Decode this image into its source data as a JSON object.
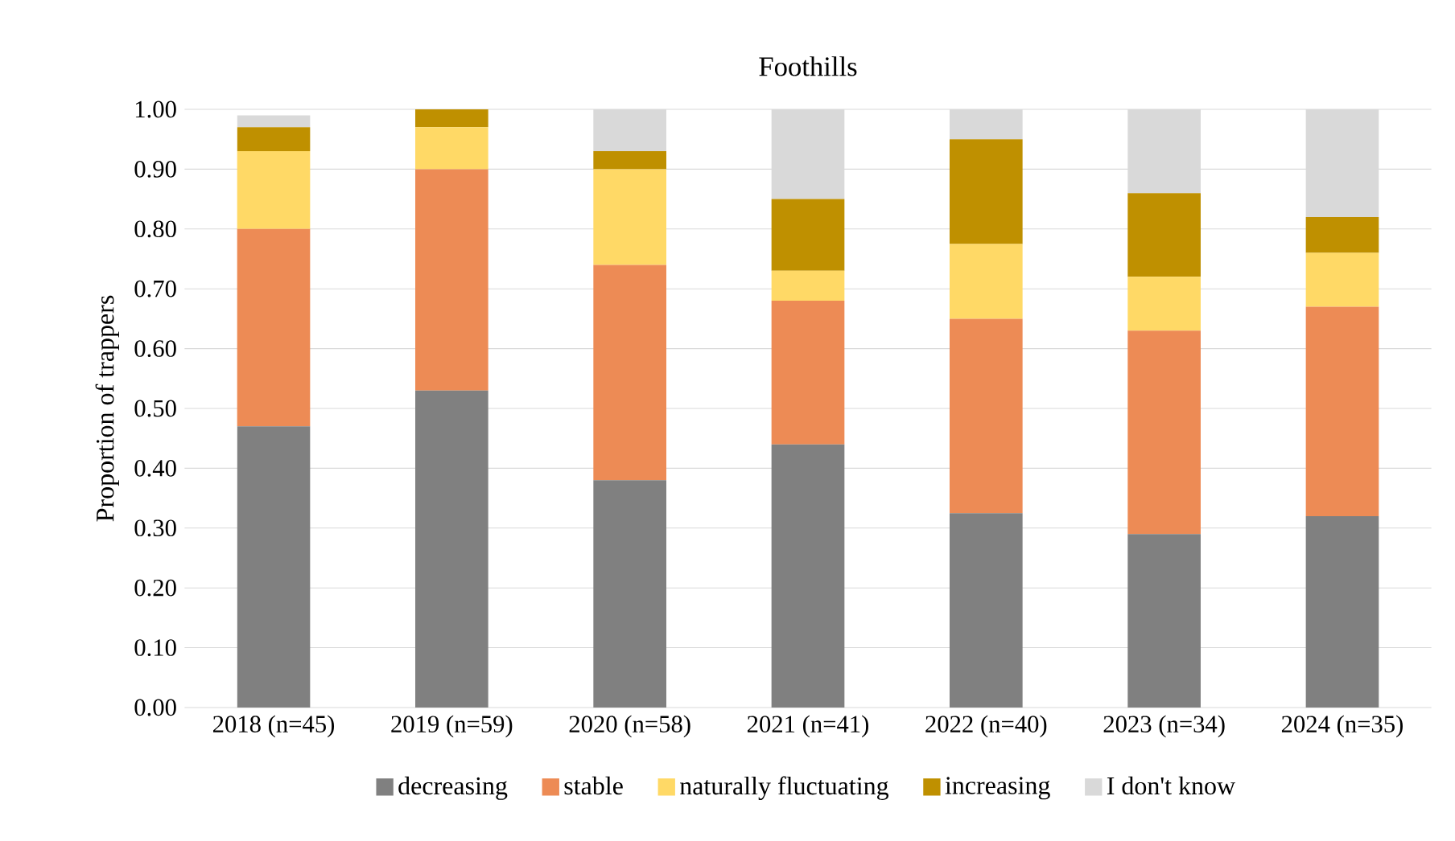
{
  "chart_data": {
    "type": "bar",
    "title": "Foothills",
    "ylabel": "Proportion of trappers",
    "stacked": true,
    "grid": "y",
    "legend": "bottom",
    "categories": [
      "2018 (n=45)",
      "2019 (n=59)",
      "2020 (n=58)",
      "2021 (n=41)",
      "2022 (n=40)",
      "2023 (n=34)",
      "2024 (n=35)"
    ],
    "series": [
      {
        "name": "decreasing",
        "color": "#808080",
        "values": [
          0.47,
          0.53,
          0.38,
          0.44,
          0.325,
          0.29,
          0.32
        ]
      },
      {
        "name": "stable",
        "color": "#ed8b55",
        "values": [
          0.33,
          0.37,
          0.36,
          0.24,
          0.325,
          0.34,
          0.35
        ]
      },
      {
        "name": "naturally fluctuating",
        "color": "#ffd966",
        "values": [
          0.13,
          0.07,
          0.16,
          0.05,
          0.125,
          0.09,
          0.09
        ]
      },
      {
        "name": "increasing",
        "color": "#bf9000",
        "values": [
          0.04,
          0.03,
          0.03,
          0.12,
          0.175,
          0.14,
          0.06
        ]
      },
      {
        "name": "I don't know",
        "color": "#d9d9d9",
        "values": [
          0.02,
          0.0,
          0.07,
          0.15,
          0.05,
          0.14,
          0.18
        ]
      }
    ],
    "ylim": [
      0,
      1
    ],
    "yticks": [
      {
        "value": 0,
        "label": "0.00"
      },
      {
        "value": 0.1,
        "label": "0.10"
      },
      {
        "value": 0.2,
        "label": "0.20"
      },
      {
        "value": 0.3,
        "label": "0.30"
      },
      {
        "value": 0.4,
        "label": "0.40"
      },
      {
        "value": 0.5,
        "label": "0.50"
      },
      {
        "value": 0.6,
        "label": "0.60"
      },
      {
        "value": 0.7,
        "label": "0.70"
      },
      {
        "value": 0.8,
        "label": "0.80"
      },
      {
        "value": 0.9,
        "label": "0.90"
      },
      {
        "value": 1,
        "label": "1.00"
      }
    ]
  }
}
